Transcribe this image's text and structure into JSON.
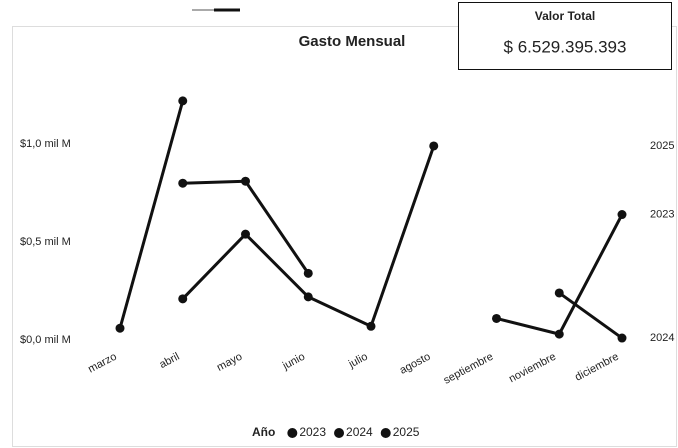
{
  "chart_data": {
    "type": "line",
    "title": "Gasto Mensual",
    "categories": [
      "marzo",
      "abril",
      "mayo",
      "junio",
      "julio",
      "agosto",
      "septiembre",
      "noviembre",
      "diciembre"
    ],
    "series": [
      {
        "name": "2023",
        "color": "#111111",
        "values": [
          0.06,
          1.22,
          null,
          null,
          null,
          null,
          0.11,
          0.03,
          0.64
        ]
      },
      {
        "name": "2024",
        "color": "#111111",
        "values": [
          null,
          0.8,
          0.81,
          0.34,
          null,
          null,
          null,
          0.24,
          0.01
        ]
      },
      {
        "name": "2025",
        "color": "#111111",
        "values": [
          null,
          0.21,
          0.54,
          0.22,
          0.07,
          0.99,
          null,
          null,
          null
        ]
      }
    ],
    "ylim": [
      0,
      1.3
    ],
    "yticks": [
      {
        "value": 0,
        "label": "$0,0 mil M"
      },
      {
        "value": 0.5,
        "label": "$0,5 mil M"
      },
      {
        "value": 1.0,
        "label": "$1,0 mil M"
      }
    ],
    "legend_title": "Año",
    "legend": "bottom"
  },
  "card": {
    "title": "Valor Total",
    "value": "$ 6.529.395.393"
  }
}
